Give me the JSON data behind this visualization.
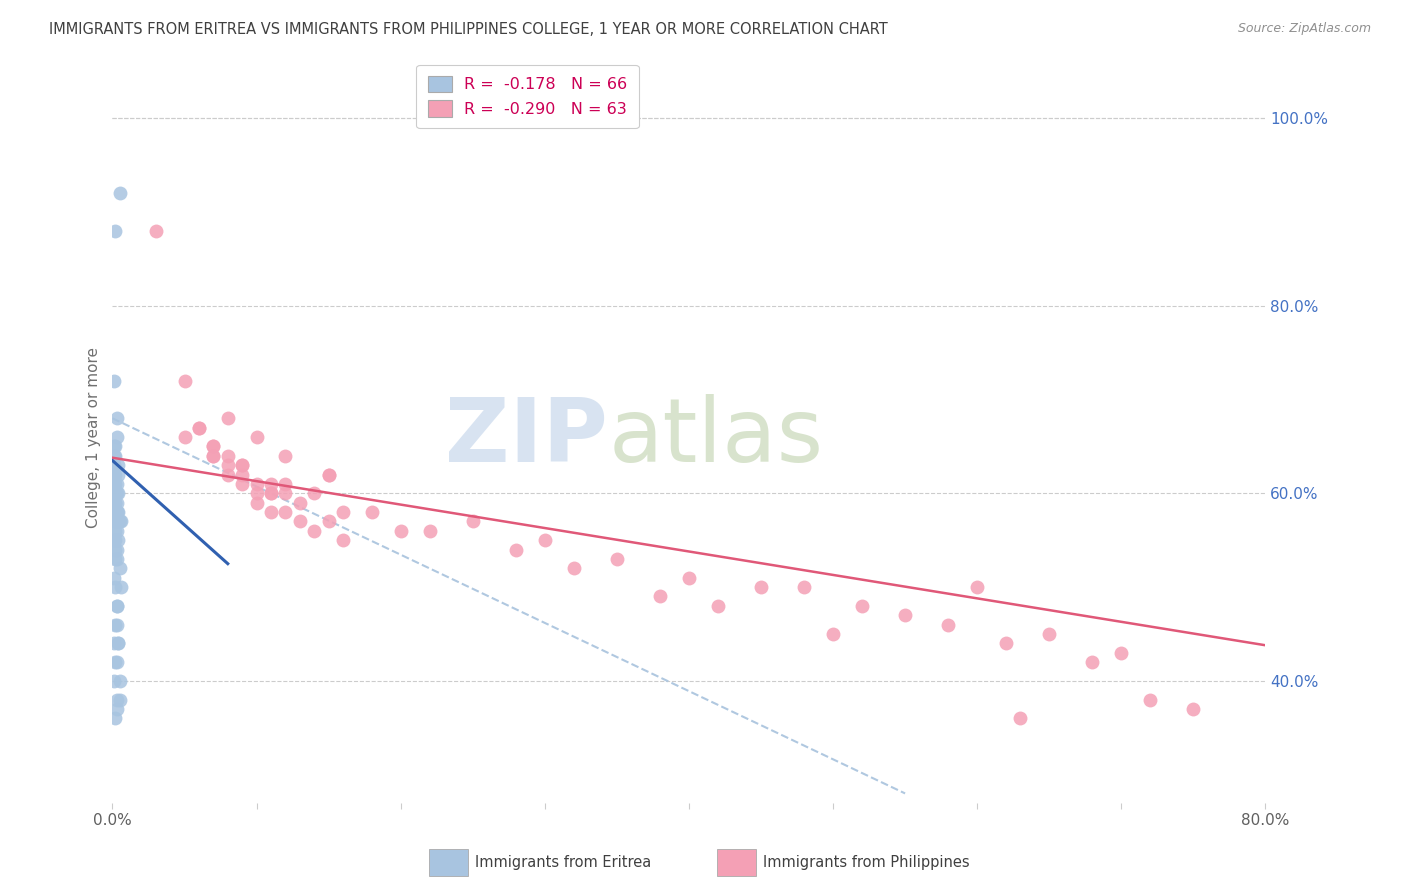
{
  "title": "IMMIGRANTS FROM ERITREA VS IMMIGRANTS FROM PHILIPPINES COLLEGE, 1 YEAR OR MORE CORRELATION CHART",
  "source": "Source: ZipAtlas.com",
  "ylabel": "College, 1 year or more",
  "right_yticks": [
    40.0,
    60.0,
    80.0,
    100.0
  ],
  "legend_eritrea": "R =  -0.178   N = 66",
  "legend_philippines": "R =  -0.290   N = 63",
  "legend_label_eritrea": "Immigrants from Eritrea",
  "legend_label_philippines": "Immigrants from Philippines",
  "eritrea_color": "#a8c4e0",
  "philippines_color": "#f4a0b5",
  "eritrea_line_color": "#3060b0",
  "philippines_line_color": "#e05878",
  "dashed_line_color": "#b0c8e0",
  "watermark_zip_color": "#c8d8ec",
  "watermark_atlas_color": "#c8d8b8",
  "background_color": "#ffffff",
  "title_color": "#404040",
  "source_color": "#909090",
  "right_axis_color": "#4472c4",
  "bottom_label_color": "#404040",
  "xlim": [
    0.0,
    80.0
  ],
  "ylim": [
    27.0,
    105.0
  ],
  "xtick_vals": [
    0.0,
    10.0,
    20.0,
    30.0,
    40.0,
    50.0,
    60.0,
    70.0,
    80.0
  ],
  "eritrea_scatter_x": [
    0.2,
    0.5,
    0.3,
    0.1,
    0.2,
    0.1,
    0.3,
    0.2,
    0.1,
    0.4,
    0.2,
    0.1,
    0.3,
    0.2,
    0.1,
    0.2,
    0.3,
    0.1,
    0.2,
    0.1,
    0.3,
    0.2,
    0.4,
    0.1,
    0.2,
    0.3,
    0.6,
    0.3,
    0.2,
    0.5,
    0.1,
    0.4,
    0.3,
    0.2,
    0.1,
    0.2,
    0.3,
    0.2,
    0.4,
    0.3,
    0.2,
    0.1,
    0.3,
    0.5,
    0.2,
    0.3,
    0.4,
    0.2,
    0.3,
    0.1,
    0.5,
    0.2,
    0.4,
    0.6,
    0.3,
    0.2,
    0.4,
    0.3,
    0.1,
    0.5,
    0.2,
    0.3,
    0.4,
    0.2,
    0.3,
    0.1
  ],
  "eritrea_scatter_y": [
    88.0,
    92.0,
    68.0,
    72.0,
    65.0,
    63.0,
    66.0,
    64.0,
    61.0,
    60.0,
    62.0,
    64.0,
    58.0,
    59.0,
    55.0,
    57.0,
    60.0,
    63.0,
    61.0,
    58.0,
    56.0,
    54.0,
    62.0,
    65.0,
    59.0,
    61.0,
    50.0,
    48.0,
    60.0,
    57.0,
    62.0,
    63.0,
    58.0,
    60.0,
    55.0,
    53.0,
    58.0,
    57.0,
    44.0,
    46.0,
    42.0,
    44.0,
    38.0,
    40.0,
    36.0,
    37.0,
    58.0,
    56.0,
    54.0,
    60.0,
    52.0,
    50.0,
    55.0,
    57.0,
    48.0,
    46.0,
    44.0,
    42.0,
    40.0,
    38.0,
    60.0,
    59.0,
    57.0,
    55.0,
    53.0,
    51.0
  ],
  "philippines_scatter_x": [
    3.0,
    5.0,
    8.0,
    10.0,
    7.0,
    12.0,
    15.0,
    9.0,
    11.0,
    6.0,
    14.0,
    10.0,
    13.0,
    8.0,
    16.0,
    11.0,
    7.0,
    9.0,
    12.0,
    5.0,
    10.0,
    15.0,
    8.0,
    12.0,
    7.0,
    9.0,
    11.0,
    6.0,
    14.0,
    10.0,
    13.0,
    8.0,
    16.0,
    11.0,
    7.0,
    9.0,
    12.0,
    30.0,
    25.0,
    35.0,
    20.0,
    40.0,
    45.0,
    28.0,
    22.0,
    32.0,
    38.0,
    18.0,
    42.0,
    15.0,
    50.0,
    55.0,
    60.0,
    65.0,
    70.0,
    48.0,
    52.0,
    58.0,
    62.0,
    68.0,
    72.0,
    75.0,
    63.0
  ],
  "philippines_scatter_y": [
    88.0,
    72.0,
    68.0,
    66.0,
    65.0,
    64.0,
    62.0,
    63.0,
    61.0,
    67.0,
    60.0,
    61.0,
    59.0,
    62.0,
    58.0,
    60.0,
    64.0,
    63.0,
    61.0,
    66.0,
    59.0,
    57.0,
    64.0,
    60.0,
    65.0,
    62.0,
    58.0,
    67.0,
    56.0,
    60.0,
    57.0,
    63.0,
    55.0,
    60.0,
    64.0,
    61.0,
    58.0,
    55.0,
    57.0,
    53.0,
    56.0,
    51.0,
    50.0,
    54.0,
    56.0,
    52.0,
    49.0,
    58.0,
    48.0,
    62.0,
    45.0,
    47.0,
    50.0,
    45.0,
    43.0,
    50.0,
    48.0,
    46.0,
    44.0,
    42.0,
    38.0,
    37.0,
    36.0
  ],
  "eritrea_trend_x": [
    0.0,
    8.0
  ],
  "eritrea_trend_y": [
    63.5,
    52.5
  ],
  "philippines_trend_x": [
    0.0,
    80.0
  ],
  "philippines_trend_y": [
    63.8,
    43.8
  ],
  "dashed_trend_x": [
    0.0,
    55.0
  ],
  "dashed_trend_y": [
    68.0,
    28.0
  ]
}
